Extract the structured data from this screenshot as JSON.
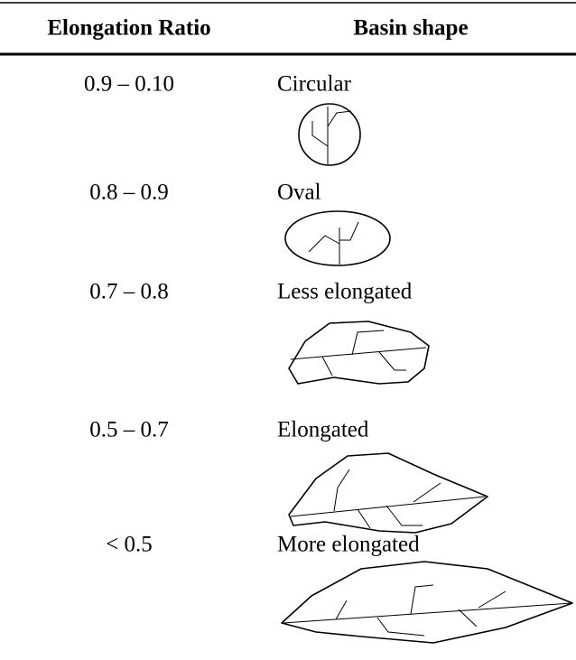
{
  "table": {
    "headers": [
      "Elongation Ratio",
      "Basin shape"
    ],
    "rows": [
      [
        "0.9 – 0.10",
        "Circular"
      ],
      [
        "0.8 – 0.9",
        "Oval"
      ],
      [
        "0.7 – 0.8",
        "Less elongated"
      ],
      [
        "0.5 – 0.7",
        "Elongated"
      ],
      [
        "< 0.5",
        "More elongated"
      ]
    ]
  }
}
